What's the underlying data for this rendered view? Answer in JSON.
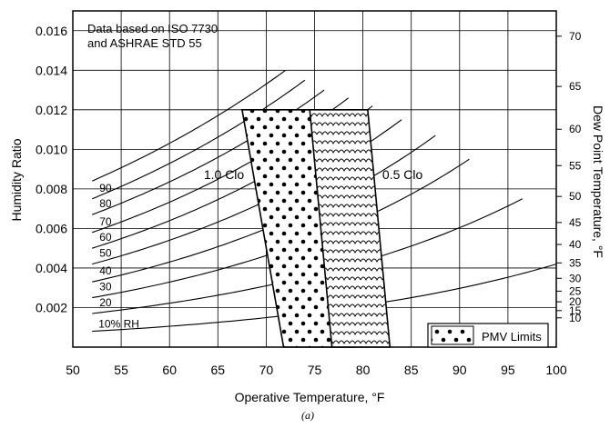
{
  "chart_data": {
    "type": "line",
    "title": "",
    "note_lines": [
      "Data based on ISO 7730",
      "and ASHRAE STD 55"
    ],
    "xlabel": "Operative Temperature, °F",
    "ylabel": "Humidity Ratio",
    "y2label": "Dew Point Temperature, °F",
    "panel_label": "(a)",
    "xlim": [
      50,
      100
    ],
    "ylim": [
      0,
      0.017
    ],
    "x_ticks": [
      "50",
      "55",
      "60",
      "65",
      "70",
      "75",
      "80",
      "85",
      "90",
      "95",
      "100"
    ],
    "y_ticks": [
      "0.002",
      "0.004",
      "0.006",
      "0.008",
      "0.010",
      "0.012",
      "0.014",
      "0.016"
    ],
    "y2_ticks": [
      "10",
      "15",
      "20",
      "25",
      "30",
      "35",
      "40",
      "45",
      "50",
      "55",
      "60",
      "65",
      "70"
    ],
    "grid": true,
    "rh_series": [
      {
        "label": "10% RH",
        "values": [
          [
            52,
            0.0008
          ],
          [
            100,
            0.0042
          ]
        ]
      },
      {
        "label": "20",
        "values": [
          [
            52,
            0.0017
          ],
          [
            96.5,
            0.0075
          ]
        ]
      },
      {
        "label": "30",
        "values": [
          [
            52,
            0.0025
          ],
          [
            91,
            0.0095
          ]
        ]
      },
      {
        "label": "40",
        "values": [
          [
            52,
            0.0033
          ],
          [
            87.5,
            0.0107
          ]
        ]
      },
      {
        "label": "50",
        "values": [
          [
            52,
            0.0042
          ],
          [
            84,
            0.0115
          ]
        ]
      },
      {
        "label": "60",
        "values": [
          [
            52,
            0.005
          ],
          [
            81,
            0.0122
          ]
        ]
      },
      {
        "label": "70",
        "values": [
          [
            52,
            0.0058
          ],
          [
            78.5,
            0.0126
          ]
        ]
      },
      {
        "label": "80",
        "values": [
          [
            52,
            0.0067
          ],
          [
            76,
            0.013
          ]
        ]
      },
      {
        "label": "90",
        "values": [
          [
            52,
            0.0075
          ],
          [
            74,
            0.0135
          ]
        ]
      },
      {
        "label": "",
        "values": [
          [
            52,
            0.0084
          ],
          [
            72,
            0.014
          ]
        ]
      }
    ],
    "comfort_zones": [
      {
        "label": "1.0 Clo",
        "pattern": "dots",
        "polygon": [
          [
            67.5,
            0.012
          ],
          [
            74.8,
            0.012
          ],
          [
            79.2,
            0.0
          ],
          [
            71.8,
            0.0
          ]
        ]
      },
      {
        "label": "0.5 Clo",
        "pattern": "waves",
        "polygon": [
          [
            74.5,
            0.012
          ],
          [
            80.5,
            0.012
          ],
          [
            82.8,
            0.0
          ],
          [
            76.8,
            0.0
          ]
        ]
      }
    ],
    "legend": {
      "label": "PMV Limits",
      "position": "bottom-right"
    }
  }
}
